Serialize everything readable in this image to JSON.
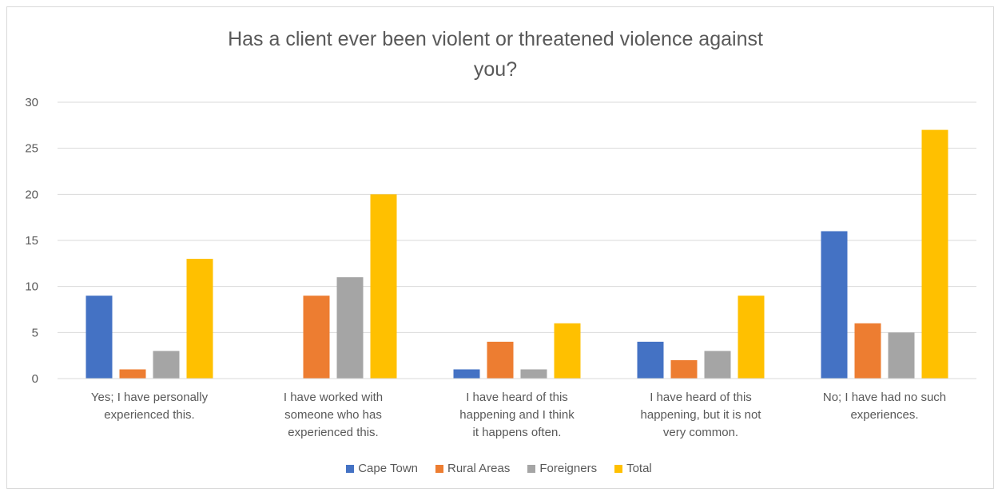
{
  "chart_data": {
    "type": "bar",
    "title_lines": [
      "Has a client ever been violent or threatened violence against",
      "you?"
    ],
    "categories": [
      [
        "Yes; I have personally",
        "experienced this."
      ],
      [
        "I have worked with",
        "someone who has",
        "experienced this."
      ],
      [
        "I have heard of this",
        "happening and I think",
        "it happens often."
      ],
      [
        "I have heard of this",
        "happening, but it is not",
        "very common."
      ],
      [
        "No; I have had no such",
        "experiences."
      ]
    ],
    "series": [
      {
        "name": "Cape Town",
        "color": "#4472c4",
        "values": [
          9,
          0,
          1,
          4,
          16
        ]
      },
      {
        "name": "Rural Areas",
        "color": "#ed7d31",
        "values": [
          1,
          9,
          4,
          2,
          6
        ]
      },
      {
        "name": "Foreigners",
        "color": "#a5a5a5",
        "values": [
          3,
          11,
          1,
          3,
          5
        ]
      },
      {
        "name": "Total",
        "color": "#ffc000",
        "values": [
          13,
          20,
          6,
          9,
          27
        ]
      }
    ],
    "ylim": [
      0,
      30
    ],
    "yticks": [
      "0",
      "5",
      "10",
      "15",
      "20",
      "25",
      "30"
    ],
    "grid": true,
    "legend_position": "bottom"
  }
}
